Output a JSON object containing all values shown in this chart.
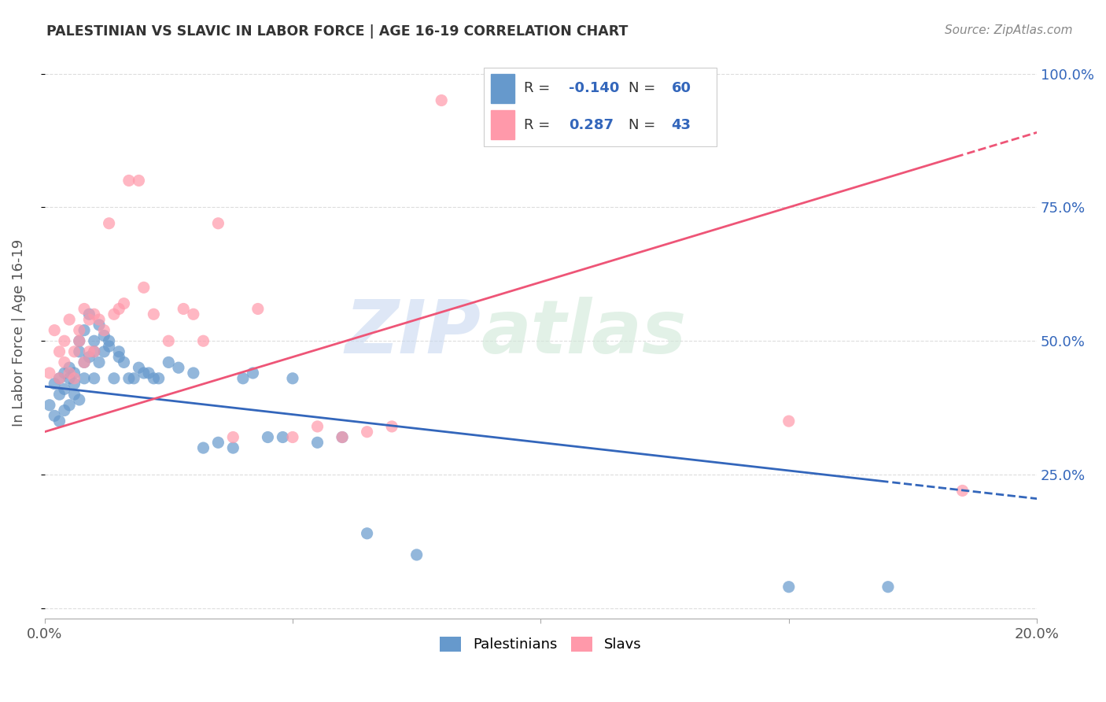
{
  "title": "PALESTINIAN VS SLAVIC IN LABOR FORCE | AGE 16-19 CORRELATION CHART",
  "source": "Source: ZipAtlas.com",
  "ylabel": "In Labor Force | Age 16-19",
  "x_min": 0.0,
  "x_max": 0.2,
  "y_min": 0.0,
  "y_max": 1.05,
  "blue_color": "#6699CC",
  "pink_color": "#FF99AA",
  "blue_line_color": "#3366BB",
  "pink_line_color": "#EE5577",
  "blue_r": -0.14,
  "blue_n": 60,
  "pink_r": 0.287,
  "pink_n": 43,
  "legend_label_blue": "Palestinians",
  "legend_label_pink": "Slavs",
  "watermark_zip": "ZIP",
  "watermark_atlas": "atlas",
  "blue_points_x": [
    0.001,
    0.002,
    0.002,
    0.003,
    0.003,
    0.003,
    0.004,
    0.004,
    0.004,
    0.005,
    0.005,
    0.005,
    0.006,
    0.006,
    0.006,
    0.007,
    0.007,
    0.007,
    0.008,
    0.008,
    0.008,
    0.009,
    0.009,
    0.01,
    0.01,
    0.01,
    0.011,
    0.011,
    0.012,
    0.012,
    0.013,
    0.013,
    0.014,
    0.015,
    0.015,
    0.016,
    0.017,
    0.018,
    0.019,
    0.02,
    0.021,
    0.022,
    0.023,
    0.025,
    0.027,
    0.03,
    0.032,
    0.035,
    0.038,
    0.04,
    0.042,
    0.045,
    0.048,
    0.05,
    0.055,
    0.06,
    0.065,
    0.075,
    0.15,
    0.17
  ],
  "blue_points_y": [
    0.38,
    0.42,
    0.36,
    0.43,
    0.4,
    0.35,
    0.44,
    0.41,
    0.37,
    0.43,
    0.45,
    0.38,
    0.42,
    0.4,
    0.44,
    0.5,
    0.48,
    0.39,
    0.52,
    0.46,
    0.43,
    0.47,
    0.55,
    0.48,
    0.5,
    0.43,
    0.53,
    0.46,
    0.51,
    0.48,
    0.5,
    0.49,
    0.43,
    0.48,
    0.47,
    0.46,
    0.43,
    0.43,
    0.45,
    0.44,
    0.44,
    0.43,
    0.43,
    0.46,
    0.45,
    0.44,
    0.3,
    0.31,
    0.3,
    0.43,
    0.44,
    0.32,
    0.32,
    0.43,
    0.31,
    0.32,
    0.14,
    0.1,
    0.04,
    0.04
  ],
  "pink_points_x": [
    0.001,
    0.002,
    0.003,
    0.003,
    0.004,
    0.004,
    0.005,
    0.005,
    0.006,
    0.006,
    0.007,
    0.007,
    0.008,
    0.008,
    0.009,
    0.009,
    0.01,
    0.01,
    0.011,
    0.012,
    0.013,
    0.014,
    0.015,
    0.016,
    0.017,
    0.019,
    0.02,
    0.022,
    0.025,
    0.028,
    0.03,
    0.032,
    0.035,
    0.038,
    0.043,
    0.05,
    0.055,
    0.06,
    0.065,
    0.07,
    0.08,
    0.15,
    0.185
  ],
  "pink_points_y": [
    0.44,
    0.52,
    0.48,
    0.43,
    0.5,
    0.46,
    0.54,
    0.44,
    0.48,
    0.43,
    0.52,
    0.5,
    0.46,
    0.56,
    0.54,
    0.48,
    0.48,
    0.55,
    0.54,
    0.52,
    0.72,
    0.55,
    0.56,
    0.57,
    0.8,
    0.8,
    0.6,
    0.55,
    0.5,
    0.56,
    0.55,
    0.5,
    0.72,
    0.32,
    0.56,
    0.32,
    0.34,
    0.32,
    0.33,
    0.34,
    0.95,
    0.35,
    0.22
  ],
  "blue_intercept": 0.415,
  "blue_slope": -1.05,
  "pink_intercept": 0.33,
  "pink_slope": 2.8
}
